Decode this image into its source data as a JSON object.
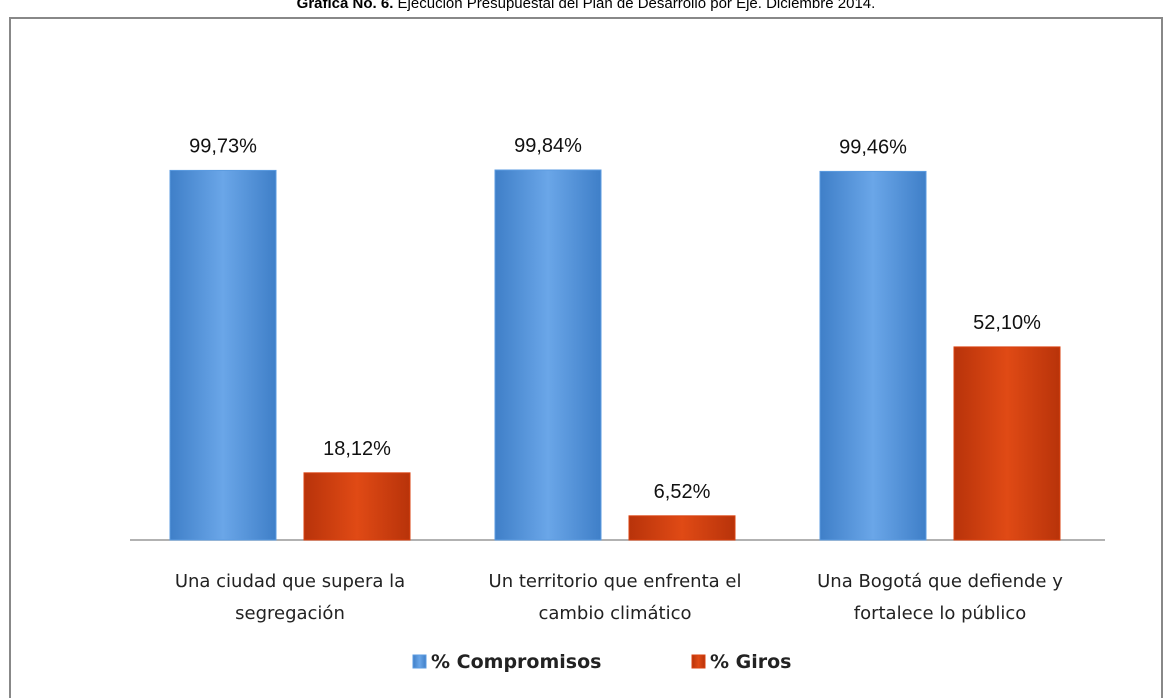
{
  "chart_data": {
    "type": "bar",
    "title_label": "Gráfica No. 6.",
    "title": "Ejecución Presupuestal del Plan de Desarrollo por Eje. Diciembre 2014.",
    "categories": [
      "Una ciudad que supera la segregación",
      "Un territorio que enfrenta el cambio climático",
      "Una Bogotá que defiende y fortalece lo público"
    ],
    "series": [
      {
        "name": "% Compromisos",
        "color": "#5b9be0",
        "values": [
          99.73,
          99.84,
          99.46
        ],
        "value_labels": [
          "99,73%",
          "99,84%",
          "99,46%"
        ]
      },
      {
        "name": "% Giros",
        "color": "#d9400f",
        "values": [
          18.12,
          6.52,
          52.1
        ],
        "value_labels": [
          "18,12%",
          "6,52%",
          "52,10%"
        ]
      }
    ],
    "legend": "bottom"
  }
}
